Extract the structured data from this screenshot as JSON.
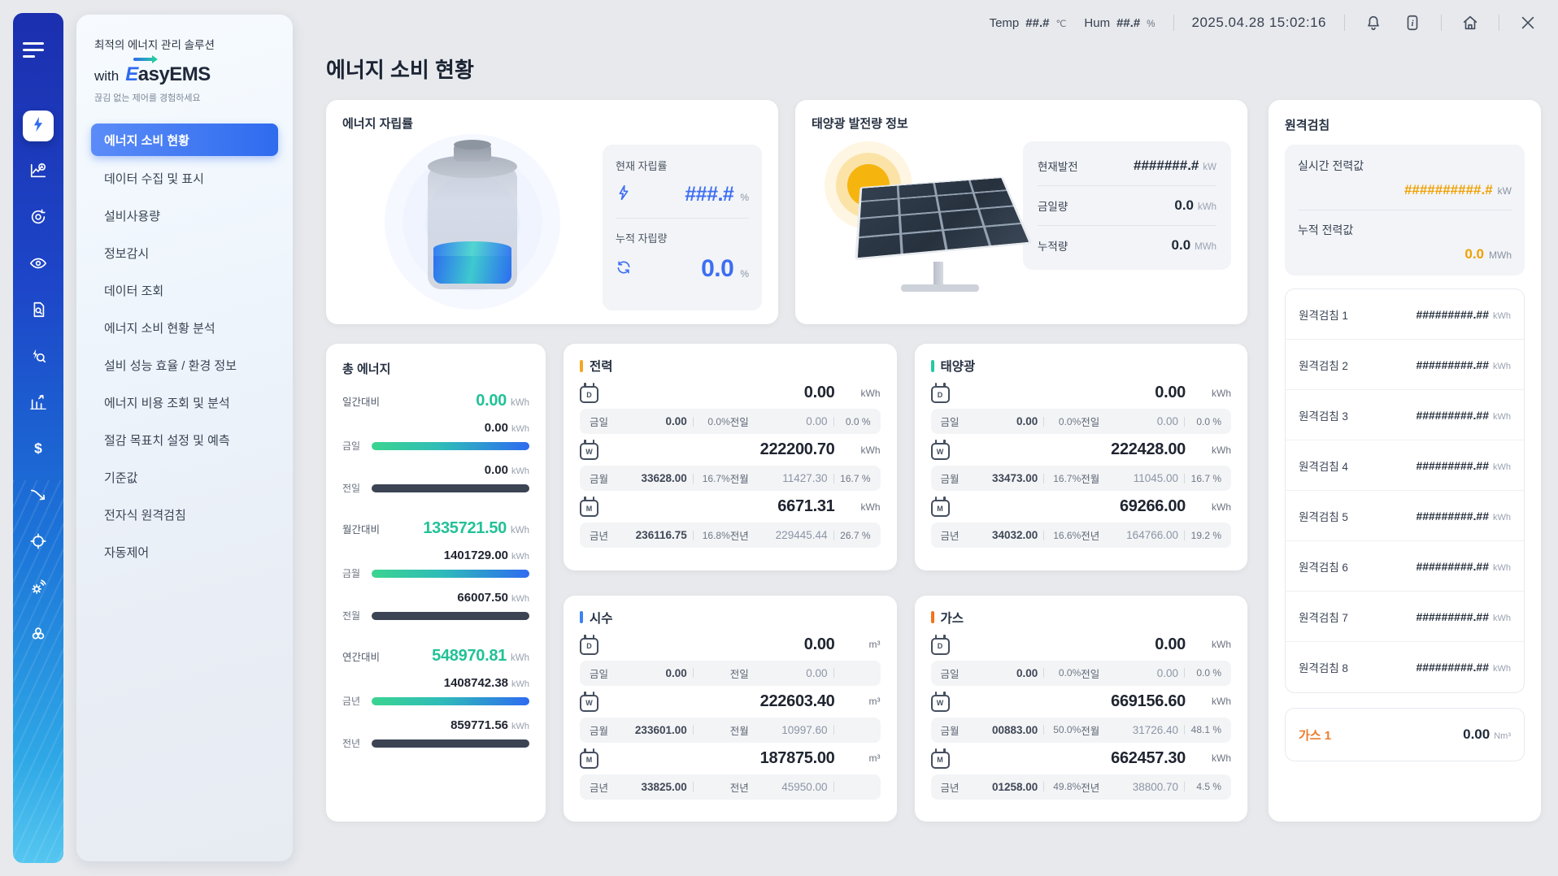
{
  "header": {
    "temp_label": "Temp",
    "temp_value": "##.#",
    "temp_unit": "℃",
    "hum_label": "Hum",
    "hum_value": "##.#",
    "hum_unit": "%",
    "datetime": "2025.04.28 15:02:16"
  },
  "sidebar": {
    "tagline": "최적의 에너지 관리 솔루션",
    "with_label": "with",
    "brand": "EasyEMS",
    "subtitle": "끊김 없는 제어를 경험하세요",
    "items": [
      {
        "label": "에너지 소비 현황",
        "active": true
      },
      {
        "label": "데이터 수집 및 표시",
        "active": false
      },
      {
        "label": "설비사용량",
        "active": false
      },
      {
        "label": "정보감시",
        "active": false
      },
      {
        "label": "데이터 조회",
        "active": false
      },
      {
        "label": "에너지 소비 현황 분석",
        "active": false
      },
      {
        "label": "설비 성능 효율 / 환경 정보",
        "active": false
      },
      {
        "label": "에너지 비용 조회 및 분석",
        "active": false
      },
      {
        "label": "절감 목표치 설정 및 예측",
        "active": false
      },
      {
        "label": "기준값",
        "active": false
      },
      {
        "label": "전자식 원격검침",
        "active": false
      },
      {
        "label": "자동제어",
        "active": false
      }
    ]
  },
  "page_title": "에너지 소비 현황",
  "independence": {
    "title": "에너지 자립률",
    "current_label": "현재 자립률",
    "current_value": "###.#",
    "current_unit": "%",
    "cumulative_label": "누적 자립량",
    "cumulative_value": "0.0",
    "cumulative_unit": "%"
  },
  "solar_info": {
    "title": "태양광 발전량 정보",
    "rows": [
      {
        "label": "현재발전",
        "value": "#######.#",
        "unit": "kW"
      },
      {
        "label": "금일량",
        "value": "0.0",
        "unit": "kWh"
      },
      {
        "label": "누적량",
        "value": "0.0",
        "unit": "MWh"
      }
    ]
  },
  "remote": {
    "title": "원격검침",
    "realtime_label": "실시간 전력값",
    "realtime_value": "##########.#",
    "realtime_unit": "kW",
    "cumulative_label": "누적 전력값",
    "cumulative_value": "0.0",
    "cumulative_unit": "MWh",
    "meters": [
      {
        "label": "원격검침 1",
        "value": "#########.##",
        "unit": "kWh"
      },
      {
        "label": "원격검침 2",
        "value": "#########.##",
        "unit": "kWh"
      },
      {
        "label": "원격검침 3",
        "value": "#########.##",
        "unit": "kWh"
      },
      {
        "label": "원격검침 4",
        "value": "#########.##",
        "unit": "kWh"
      },
      {
        "label": "원격검침 5",
        "value": "#########.##",
        "unit": "kWh"
      },
      {
        "label": "원격검침 6",
        "value": "#########.##",
        "unit": "kWh"
      },
      {
        "label": "원격검침 7",
        "value": "#########.##",
        "unit": "kWh"
      },
      {
        "label": "원격검침 8",
        "value": "#########.##",
        "unit": "kWh"
      }
    ],
    "gas": {
      "label": "가스 1",
      "value": "0.00",
      "unit": "Nm³"
    }
  },
  "total_energy": {
    "title": "총 에너지",
    "sections": [
      {
        "compare_label": "일간대비",
        "compare_value": "0.00",
        "unit": "kWh",
        "bars": [
          {
            "label": "금일",
            "value": "0.00",
            "style": "gradient"
          },
          {
            "label": "전일",
            "value": "0.00",
            "style": "dark"
          }
        ]
      },
      {
        "compare_label": "월간대비",
        "compare_value": "1335721.50",
        "unit": "kWh",
        "bars": [
          {
            "label": "금월",
            "value": "1401729.00",
            "style": "gradient"
          },
          {
            "label": "전월",
            "value": "66007.50",
            "style": "dark"
          }
        ]
      },
      {
        "compare_label": "연간대비",
        "compare_value": "548970.81",
        "unit": "kWh",
        "bars": [
          {
            "label": "금년",
            "value": "1408742.38",
            "style": "gradient"
          },
          {
            "label": "전년",
            "value": "859771.56",
            "style": "dark"
          }
        ]
      }
    ]
  },
  "meter_cards": [
    {
      "title": "전력",
      "accent": "#F5A623",
      "unit": "kWh",
      "rows": [
        {
          "period": "D",
          "value": "0.00",
          "sub": [
            {
              "label": "금일",
              "value": "0.00",
              "pct": "0.0%"
            },
            {
              "label": "전일",
              "value": "0.00",
              "pct": "0.0 %"
            }
          ]
        },
        {
          "period": "W",
          "value": "222200.70",
          "sub": [
            {
              "label": "금월",
              "value": "33628.00",
              "pct": "16.7%"
            },
            {
              "label": "전월",
              "value": "11427.30",
              "pct": "16.7 %"
            }
          ]
        },
        {
          "period": "M",
          "value": "6671.31",
          "sub": [
            {
              "label": "금년",
              "value": "236116.75",
              "pct": "16.8%"
            },
            {
              "label": "전년",
              "value": "229445.44",
              "pct": "26.7 %"
            }
          ]
        }
      ]
    },
    {
      "title": "태양광",
      "accent": "#25C9A4",
      "unit": "kWh",
      "rows": [
        {
          "period": "D",
          "value": "0.00",
          "sub": [
            {
              "label": "금일",
              "value": "0.00",
              "pct": "0.0%"
            },
            {
              "label": "전일",
              "value": "0.00",
              "pct": "0.0 %"
            }
          ]
        },
        {
          "period": "W",
          "value": "222428.00",
          "sub": [
            {
              "label": "금월",
              "value": "33473.00",
              "pct": "16.7%"
            },
            {
              "label": "전월",
              "value": "11045.00",
              "pct": "16.7 %"
            }
          ]
        },
        {
          "period": "M",
          "value": "69266.00",
          "sub": [
            {
              "label": "금년",
              "value": "34032.00",
              "pct": "16.6%"
            },
            {
              "label": "전년",
              "value": "164766.00",
              "pct": "19.2 %"
            }
          ]
        }
      ]
    },
    {
      "title": "시수",
      "accent": "#3B82F6",
      "unit": "m³",
      "rows": [
        {
          "period": "D",
          "value": "0.00",
          "sub": [
            {
              "label": "금일",
              "value": "0.00",
              "pct": ""
            },
            {
              "label": "전일",
              "value": "0.00",
              "pct": ""
            }
          ]
        },
        {
          "period": "W",
          "value": "222603.40",
          "sub": [
            {
              "label": "금월",
              "value": "233601.00",
              "pct": ""
            },
            {
              "label": "전월",
              "value": "10997.60",
              "pct": ""
            }
          ]
        },
        {
          "period": "M",
          "value": "187875.00",
          "sub": [
            {
              "label": "금년",
              "value": "33825.00",
              "pct": ""
            },
            {
              "label": "전년",
              "value": "45950.00",
              "pct": ""
            }
          ]
        }
      ]
    },
    {
      "title": "가스",
      "accent": "#F4731C",
      "unit": "kWh",
      "rows": [
        {
          "period": "D",
          "value": "0.00",
          "sub": [
            {
              "label": "금일",
              "value": "0.00",
              "pct": "0.0%"
            },
            {
              "label": "전일",
              "value": "0.00",
              "pct": "0.0 %"
            }
          ]
        },
        {
          "period": "W",
          "value": "669156.60",
          "sub": [
            {
              "label": "금월",
              "value": "00883.00",
              "pct": "50.0%"
            },
            {
              "label": "전월",
              "value": "31726.40",
              "pct": "48.1 %"
            }
          ]
        },
        {
          "period": "M",
          "value": "662457.30",
          "sub": [
            {
              "label": "금년",
              "value": "01258.00",
              "pct": "49.8%"
            },
            {
              "label": "전년",
              "value": "38800.70",
              "pct": "4.5 %"
            }
          ]
        }
      ]
    }
  ],
  "colors": {
    "primary_blue": "#3D6EF2",
    "teal": "#23C197",
    "remote_orange": "#F0A000",
    "gas_orange": "#ED7D2B",
    "bar_gradient": [
      "#3BD490",
      "#2E6BF0"
    ],
    "bar_dark": "#3C4454"
  }
}
